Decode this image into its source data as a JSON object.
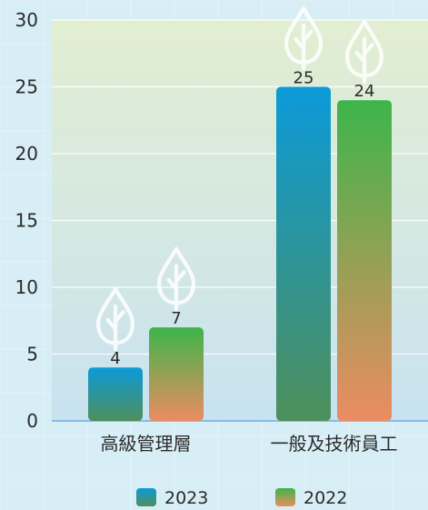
{
  "chart_data": {
    "type": "bar",
    "title": "",
    "xlabel": "",
    "ylabel": "",
    "categories": [
      "高級管理層",
      "一般及技術員工"
    ],
    "series": [
      {
        "name": "2023",
        "values": [
          4,
          25
        ],
        "gradient": {
          "top": "#0c9ad8",
          "bottom": "#4e8f5b"
        }
      },
      {
        "name": "2022",
        "values": [
          7,
          24
        ],
        "gradient": {
          "top": "#3cb54a",
          "bottom": "#ec8c61"
        }
      }
    ],
    "ylim": [
      0,
      30
    ],
    "yticks": [
      0,
      5,
      10,
      15,
      20,
      25,
      30
    ],
    "grid": true,
    "legend_position": "bottom-center",
    "decorative_icon": "leaf-drop-icon",
    "colors": {
      "page_background": "#d8eef6",
      "plot_top": "#e2eed2",
      "plot_bottom": "#c8e2f0",
      "gridline": "#ffffff",
      "baseline": "#6aaee0",
      "text": "#2b2b2b"
    }
  }
}
